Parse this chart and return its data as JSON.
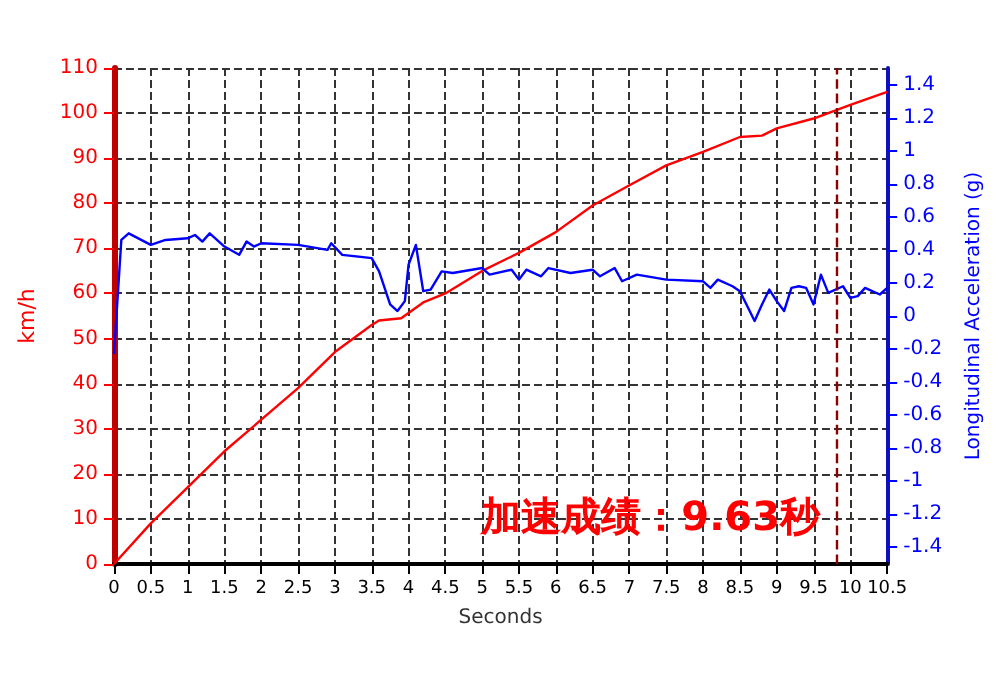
{
  "chart_data": {
    "type": "line",
    "xlabel": "Seconds",
    "ylabel": "km/h",
    "y2label": "Longitudinal Acceleration (g)",
    "xlim": [
      0,
      10.5
    ],
    "xticks": [
      0,
      0.5,
      1,
      1.5,
      2,
      2.5,
      3,
      3.5,
      4,
      4.5,
      5,
      5.5,
      6,
      6.5,
      7,
      7.5,
      8,
      8.5,
      9,
      9.5,
      10,
      10.5
    ],
    "ylim": [
      0,
      110
    ],
    "yticks": [
      0,
      10,
      20,
      30,
      40,
      50,
      60,
      70,
      80,
      90,
      100,
      110
    ],
    "y2lim": [
      -1.5,
      1.5
    ],
    "y2ticks": [
      -1.4,
      -1.2,
      -1,
      -0.8,
      -0.6,
      -0.4,
      -0.2,
      0,
      0.2,
      0.4,
      0.6,
      0.8,
      1,
      1.2,
      1.4
    ],
    "grid": true,
    "marker": "none",
    "line_style": "solid",
    "series": [
      {
        "color": "#ff0000",
        "x": [
          0,
          0.5,
          1,
          1.5,
          2,
          2.5,
          3,
          3.5,
          3.6,
          3.9,
          4.2,
          4.5,
          5,
          5.5,
          6,
          6.5,
          7,
          7.5,
          8,
          8.5,
          8.8,
          9,
          9.5,
          10,
          10.5
        ],
        "values": [
          0,
          9,
          17,
          25,
          32,
          39,
          47,
          53,
          54,
          54.5,
          58,
          60,
          65,
          69,
          73.6,
          79.5,
          84,
          88.4,
          91.4,
          94.7,
          95,
          96.6,
          98.8,
          101.8,
          104.7
        ]
      },
      {
        "color": "#0000ff",
        "axis": "y2",
        "x": [
          0,
          0.1,
          0.2,
          0.5,
          0.7,
          1,
          1.1,
          1.2,
          1.3,
          1.5,
          1.7,
          1.8,
          1.9,
          2,
          2.5,
          2.9,
          2.95,
          3.1,
          3.5,
          3.6,
          3.75,
          3.85,
          3.95,
          4,
          4.1,
          4.2,
          4.3,
          4.45,
          4.6,
          5,
          5.1,
          5.4,
          5.5,
          5.6,
          5.8,
          5.9,
          6.2,
          6.5,
          6.6,
          6.8,
          6.9,
          7.1,
          7.5,
          8,
          8.1,
          8.2,
          8.4,
          8.5,
          8.7,
          8.8,
          8.9,
          9,
          9.1,
          9.2,
          9.3,
          9.4,
          9.5,
          9.6,
          9.7,
          9.9,
          10,
          10.1,
          10.2,
          10.4,
          10.5
        ],
        "values": [
          -0.23,
          0.46,
          0.5,
          0.43,
          0.46,
          0.47,
          0.49,
          0.45,
          0.5,
          0.42,
          0.37,
          0.45,
          0.42,
          0.44,
          0.43,
          0.4,
          0.44,
          0.37,
          0.35,
          0.27,
          0.07,
          0.03,
          0.09,
          0.31,
          0.43,
          0.15,
          0.16,
          0.27,
          0.26,
          0.29,
          0.25,
          0.28,
          0.22,
          0.28,
          0.24,
          0.29,
          0.26,
          0.28,
          0.24,
          0.29,
          0.21,
          0.25,
          0.22,
          0.21,
          0.17,
          0.22,
          0.18,
          0.15,
          -0.03,
          0.07,
          0.16,
          0.09,
          0.03,
          0.17,
          0.18,
          0.17,
          0.07,
          0.25,
          0.14,
          0.18,
          0.11,
          0.12,
          0.17,
          0.13,
          0.17
        ]
      }
    ],
    "ref_lines": [
      {
        "axis": "x",
        "value": 9.8,
        "color": "#8b0000",
        "line_style": "dashed"
      }
    ],
    "annotations": [
      "加速成绩：9.63秒"
    ]
  }
}
